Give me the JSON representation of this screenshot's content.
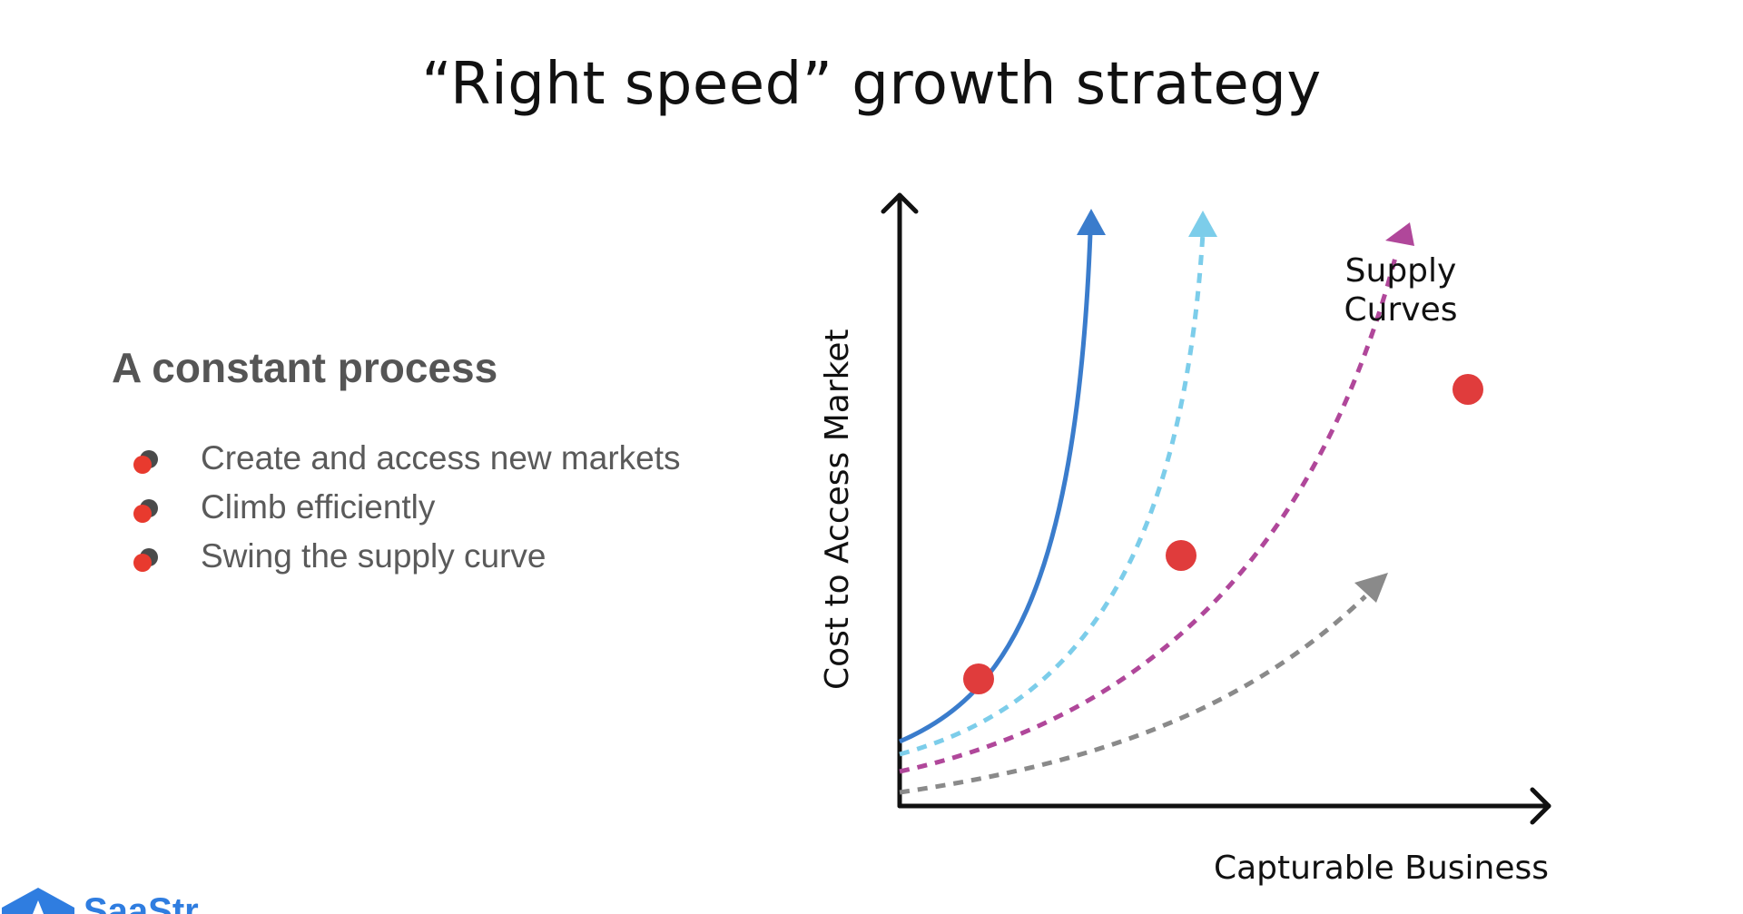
{
  "slide": {
    "title": "“Right speed” growth strategy"
  },
  "content": {
    "heading": "A constant process",
    "bullets": [
      "Create and access new markets",
      "Climb efficiently",
      "Swing the supply curve"
    ]
  },
  "diagram": {
    "y_axis_label": "Cost to Access Market",
    "x_axis_label": "Capturable Business",
    "curves_label_line1": "Supply",
    "curves_label_line2": "Curves",
    "colors": {
      "axis": "#111111",
      "curve_blue": "#3a7ccc",
      "curve_lightblue": "#7ccdea",
      "curve_magenta": "#b0479a",
      "curve_gray": "#8a8a8a",
      "marker": "#e03c3c"
    }
  },
  "logo": {
    "text": "SaaStr",
    "color": "#2f7de0"
  }
}
